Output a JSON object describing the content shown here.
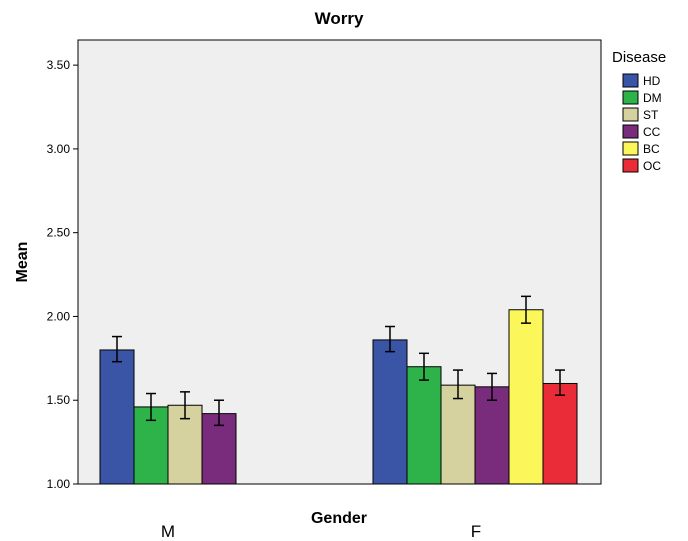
{
  "chart_data": {
    "type": "bar",
    "title": "Worry",
    "xlabel": "Gender",
    "ylabel": "Mean",
    "categories": [
      "M",
      "F"
    ],
    "ylim": [
      1.0,
      3.65
    ],
    "yticks": [
      "1.00",
      "1.50",
      "2.00",
      "2.50",
      "3.00",
      "3.50"
    ],
    "ytick_values": [
      1.0,
      1.5,
      2.0,
      2.5,
      3.0,
      3.5
    ],
    "legend_title": "Disease",
    "legend_position": "right",
    "grid": false,
    "plot_background": "#efefef",
    "series": [
      {
        "name": "HD",
        "color": "#3b55a6",
        "values": [
          1.8,
          1.86
        ],
        "err_low": [
          1.73,
          1.79
        ],
        "err_high": [
          1.88,
          1.94
        ]
      },
      {
        "name": "DM",
        "color": "#2db34a",
        "values": [
          1.46,
          1.7
        ],
        "err_low": [
          1.38,
          1.62
        ],
        "err_high": [
          1.54,
          1.78
        ]
      },
      {
        "name": "ST",
        "color": "#d6d2a0",
        "values": [
          1.47,
          1.59
        ],
        "err_low": [
          1.39,
          1.51
        ],
        "err_high": [
          1.55,
          1.68
        ]
      },
      {
        "name": "CC",
        "color": "#7a2c7c",
        "values": [
          1.42,
          1.58
        ],
        "err_low": [
          1.35,
          1.5
        ],
        "err_high": [
          1.5,
          1.66
        ]
      },
      {
        "name": "BC",
        "color": "#fbf65a",
        "values": [
          null,
          2.04
        ],
        "err_low": [
          null,
          1.96
        ],
        "err_high": [
          null,
          2.12
        ]
      },
      {
        "name": "OC",
        "color": "#ea2c38",
        "values": [
          null,
          1.6
        ],
        "err_low": [
          null,
          1.53
        ],
        "err_high": [
          null,
          1.68
        ]
      }
    ]
  }
}
